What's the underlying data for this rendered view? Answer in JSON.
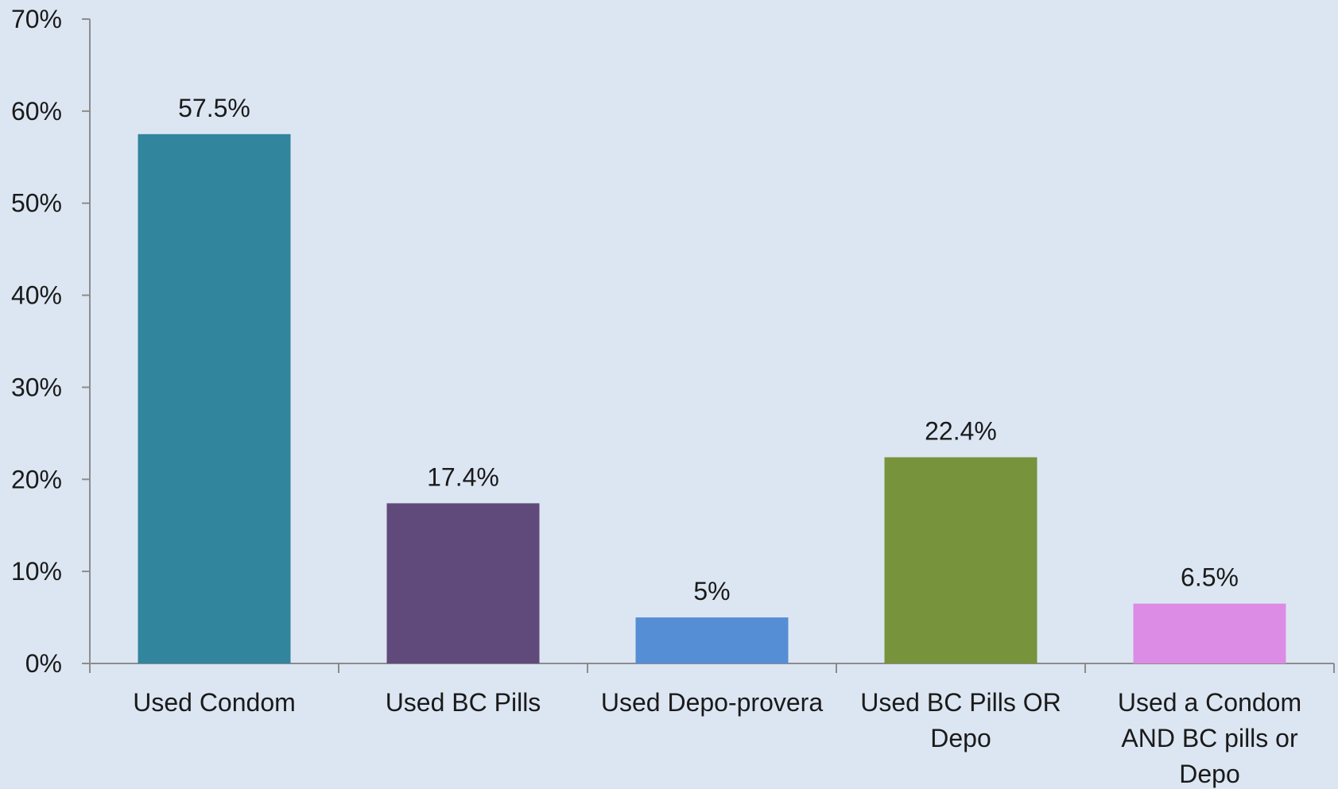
{
  "chart_data": {
    "type": "bar",
    "title": "",
    "xlabel": "",
    "ylabel": "",
    "categories": [
      [
        "Used Condom"
      ],
      [
        "Used BC Pills"
      ],
      [
        "Used Depo-provera"
      ],
      [
        "Used BC Pills OR",
        "Depo"
      ],
      [
        "Used a Condom",
        "AND BC pills or",
        "Depo"
      ]
    ],
    "values": [
      57.5,
      17.4,
      5,
      22.4,
      6.5
    ],
    "data_labels": [
      "57.5%",
      "17.4%",
      "5%",
      "22.4%",
      "6.5%"
    ],
    "bar_colors": [
      "#31859c",
      "#604a7b",
      "#558ed5",
      "#77933c",
      "#dd8ce6"
    ],
    "ylim": [
      0,
      70
    ],
    "y_ticks": [
      0,
      10,
      20,
      30,
      40,
      50,
      60,
      70
    ],
    "y_tick_labels": [
      "0%",
      "10%",
      "20%",
      "30%",
      "40%",
      "50%",
      "60%",
      "70%"
    ],
    "grid": false,
    "legend": "none",
    "background_color": "#dce6f2",
    "axis_color": "#8c8c8c"
  }
}
